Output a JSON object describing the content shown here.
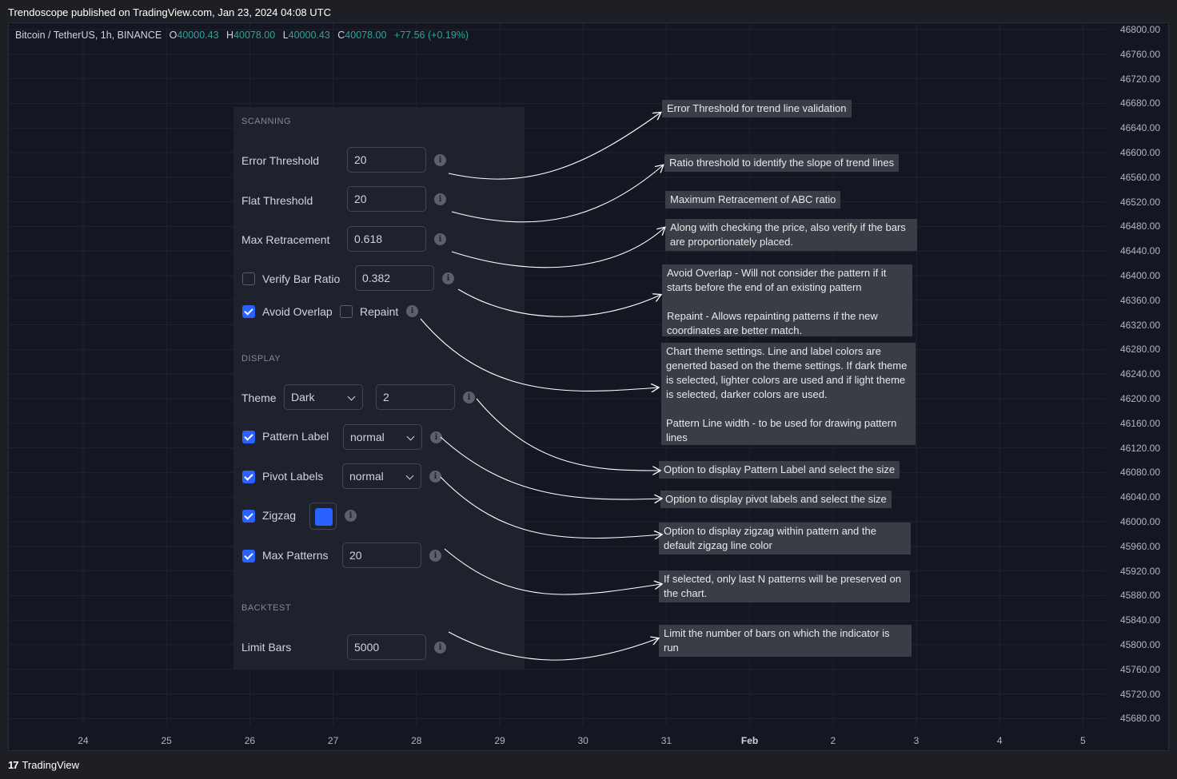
{
  "published_line": "Trendoscope published on TradingView.com, Jan 23, 2024 04:08 UTC",
  "symbol": {
    "name": "Bitcoin / TetherUS, 1h, BINANCE",
    "o_label": "O",
    "o": "40000.43",
    "h_label": "H",
    "h": "40078.00",
    "l_label": "L",
    "l": "40000.43",
    "c_label": "C",
    "c": "40078.00",
    "change": "+77.56 (+0.19%)"
  },
  "price_axis": [
    "46800.00",
    "46760.00",
    "46720.00",
    "46680.00",
    "46640.00",
    "46600.00",
    "46560.00",
    "46520.00",
    "46480.00",
    "46440.00",
    "46400.00",
    "46360.00",
    "46320.00",
    "46280.00",
    "46240.00",
    "46200.00",
    "46160.00",
    "46120.00",
    "46080.00",
    "46040.00",
    "46000.00",
    "45960.00",
    "45920.00",
    "45880.00",
    "45840.00",
    "45800.00",
    "45760.00",
    "45720.00",
    "45680.00"
  ],
  "time_axis": [
    "24",
    "25",
    "26",
    "27",
    "28",
    "29",
    "30",
    "31",
    "Feb",
    "2",
    "3",
    "4",
    "5"
  ],
  "settings": {
    "scanning_title": "SCANNING",
    "error_threshold_label": "Error Threshold",
    "error_threshold_value": "20",
    "flat_threshold_label": "Flat Threshold",
    "flat_threshold_value": "20",
    "max_retracement_label": "Max Retracement",
    "max_retracement_value": "0.618",
    "verify_bar_ratio_label": "Verify Bar Ratio",
    "verify_bar_ratio_checked": false,
    "verify_bar_ratio_value": "0.382",
    "avoid_overlap_label": "Avoid Overlap",
    "avoid_overlap_checked": true,
    "repaint_label": "Repaint",
    "repaint_checked": false,
    "display_title": "DISPLAY",
    "theme_label": "Theme",
    "theme_value": "Dark",
    "line_width_value": "2",
    "pattern_label_label": "Pattern Label",
    "pattern_label_checked": true,
    "pattern_label_value": "normal",
    "pivot_labels_label": "Pivot Labels",
    "pivot_labels_checked": true,
    "pivot_labels_value": "normal",
    "zigzag_label": "Zigzag",
    "zigzag_checked": true,
    "zigzag_color": "#2962ff",
    "max_patterns_label": "Max Patterns",
    "max_patterns_checked": true,
    "max_patterns_value": "20",
    "backtest_title": "BACKTEST",
    "limit_bars_label": "Limit Bars",
    "limit_bars_value": "5000",
    "info_glyph": "i"
  },
  "annotations": {
    "error_threshold": "Error Threshold for trend line validation",
    "flat_threshold": "Ratio threshold to identify the slope of trend lines",
    "max_retracement": "Maximum Retracement of ABC ratio",
    "verify_bar_ratio": "Along with checking the price, also verify if the bars are proportionately placed.",
    "avoid_overlap": "Avoid Overlap - Will not consider the pattern if it starts before the end of an existing pattern",
    "repaint": "Repaint - Allows repainting patterns if the new coordinates are better match.",
    "theme": "Chart theme settings. Line and label colors are generted based on the theme settings. If dark theme is selected, lighter colors are used and if light theme is selected, darker colors are used.",
    "line_width": "Pattern Line width - to be used for drawing pattern lines",
    "pattern_label": "Option to display Pattern Label and select the size",
    "pivot_labels": "Option to display pivot labels and select the size",
    "zigzag": "Option to display zigzag within pattern and the default zigzag line color",
    "max_patterns": "If selected, only last N patterns will be preserved on the chart.",
    "limit_bars": "Limit the number of bars on which the indicator is run"
  },
  "footer": {
    "logo": "17",
    "brand": "TradingView"
  },
  "colors": {
    "accent": "#2962ff",
    "up": "#26a69a",
    "background": "#141722",
    "panel": "#1e222d"
  }
}
